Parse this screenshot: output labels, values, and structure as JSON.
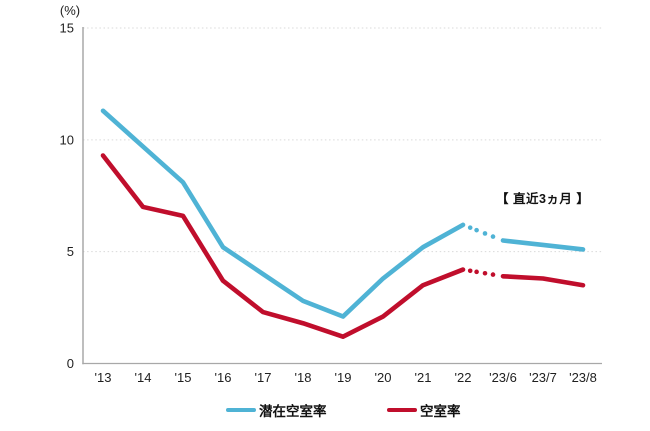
{
  "chart": {
    "axis_color": "#a8a8a8",
    "grid_color": "#d9d9d9",
    "text_color": "#1f1f1f",
    "background": "#ffffff"
  },
  "chart_data": {
    "type": "line",
    "title": "",
    "ylabel_unit": "(%)",
    "annotation": "【 直近3ヵ月 】",
    "categories": [
      "'13",
      "'14",
      "'15",
      "'16",
      "'17",
      "'18",
      "'19",
      "'20",
      "'21",
      "'22",
      "'23/6",
      "'23/7",
      "'23/8"
    ],
    "series": [
      {
        "name": "潜在空室率",
        "color": "#4FB3D5",
        "values": [
          11.3,
          9.7,
          8.1,
          5.2,
          4.0,
          2.8,
          2.1,
          3.8,
          5.2,
          6.2,
          5.5,
          5.3,
          5.1
        ],
        "dotted_gap_after_index": 9
      },
      {
        "name": "空室率",
        "color": "#C00E2C",
        "values": [
          9.3,
          7.0,
          6.6,
          3.7,
          2.3,
          1.8,
          1.2,
          2.1,
          3.5,
          4.2,
          3.9,
          3.8,
          3.5
        ],
        "dotted_gap_after_index": 9
      }
    ],
    "ylim": [
      0,
      15
    ],
    "yticks": [
      0,
      5,
      10,
      15
    ],
    "grid": true,
    "legend_position": "bottom"
  },
  "legend": {
    "items": [
      {
        "label": "潜在空室率",
        "color": "#4FB3D5"
      },
      {
        "label": "空室率",
        "color": "#C00E2C"
      }
    ]
  }
}
